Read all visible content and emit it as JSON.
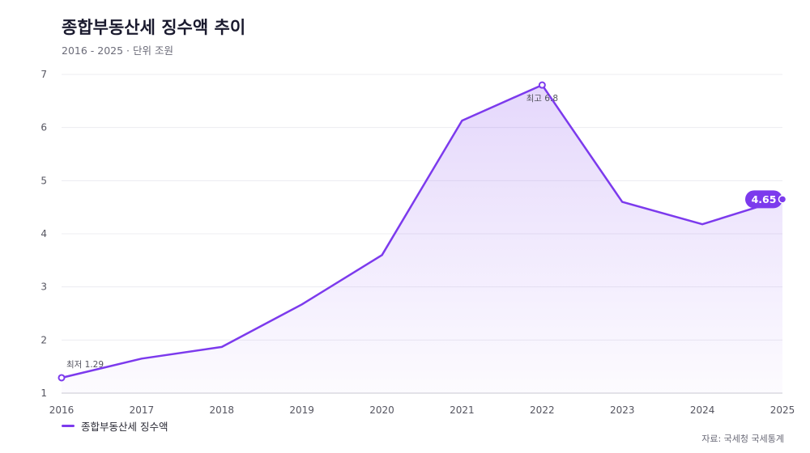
{
  "header": {
    "title": "종합부동산세 징수액 추이",
    "subtitle": "2016 - 2025 · 단위 조원"
  },
  "legend": {
    "label": "종합부동산세 징수액"
  },
  "source": "자료: 국세청 국세통계",
  "colors": {
    "line": "#7c3aed",
    "fill": "#7c3aed",
    "grid": "#ececf1",
    "axis": "#c9c9d2"
  },
  "chart_data": {
    "type": "area",
    "x": [
      "2016",
      "2017",
      "2018",
      "2019",
      "2020",
      "2021",
      "2022",
      "2023",
      "2024",
      "2025"
    ],
    "series": [
      {
        "name": "종합부동산세 징수액",
        "values": [
          1.29,
          1.65,
          1.87,
          2.67,
          3.6,
          6.13,
          6.8,
          4.6,
          4.18,
          4.65
        ]
      }
    ],
    "ylim": [
      1,
      7
    ],
    "yticks": [
      1,
      2,
      3,
      4,
      5,
      6,
      7
    ],
    "grid": true,
    "legend_position": "bottom-left",
    "annotations": {
      "min": {
        "label": "최저 1.29",
        "index": 0
      },
      "max": {
        "label": "최고 6.8",
        "index": 6
      },
      "last": {
        "label": "4.65",
        "index": 9
      }
    }
  }
}
